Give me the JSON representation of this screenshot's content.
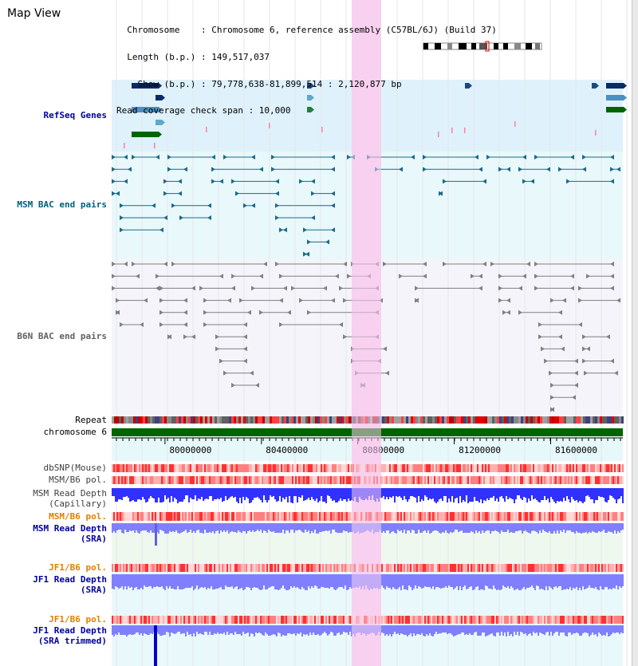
{
  "view": {
    "title": "Map View",
    "info_lines": [
      "  Chromosome    : Chromosome 6, reference assembly (C57BL/6J) (Build 37)",
      "  Length (b.p.) : 149,517,037",
      "    Show (b.p.) : 79,778,638-81,899,514 : 2,120,877 bp",
      "Read coverage check span : 10,000"
    ]
  },
  "axis": {
    "tick_labels": [
      "80000000",
      "80400000",
      "80800000",
      "81200000",
      "81600000"
    ],
    "chromosome_label": "chromosome 6",
    "repeat_label": "Repeat"
  },
  "tracks": {
    "refseq": "RefSeq Genes",
    "msm_bac": "MSM BAC end pairs",
    "b6n_bac": "B6N BAC end pairs",
    "dbsnp": "dbSNP(Mouse)",
    "msm_b6_pol": "MSM/B6 pol.",
    "msm_depth_cap_1": "MSM Read Depth",
    "msm_depth_cap_2": "(Capillary)",
    "msm_b6_pol_2": "MSM/B6 pol.",
    "msm_depth_sra_1": "MSM Read Depth",
    "msm_depth_sra_2": "(SRA)",
    "jf1_b6_pol": "JF1/B6 pol.",
    "jf1_depth_sra_1": "JF1 Read Depth",
    "jf1_depth_sra_2": "(SRA)",
    "jf1_b6_pol_2": "JF1/B6 pol.",
    "jf1_depth_trim_1": "JF1 Read Depth",
    "jf1_depth_trim_2": "(SRA trimmed)"
  },
  "colors": {
    "refseq_label": "#0000a0",
    "msm_bac_label": "#006080",
    "b6n_bac_label": "#606060",
    "pol_label_orange": "#e08000",
    "depth_label_blue": "#0000a0",
    "highlight": "#f8d0f0",
    "chromosome_bar": "#006400",
    "capillary_depth": "#3030ff",
    "sra_depth": "#8080ff"
  }
}
